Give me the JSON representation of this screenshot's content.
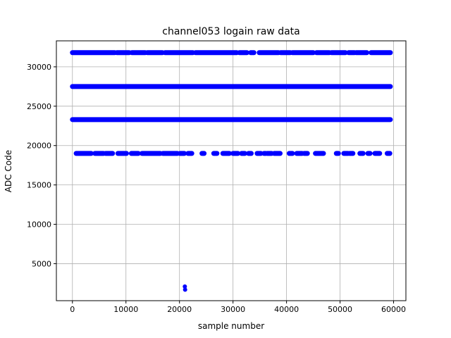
{
  "chart_data": {
    "type": "scatter",
    "title": "channel053 logain raw data",
    "xlabel": "sample number",
    "ylabel": "ADC Code",
    "xlim": [
      -3000,
      62300
    ],
    "ylim": [
      300,
      33300
    ],
    "xticks": [
      0,
      10000,
      20000,
      30000,
      40000,
      50000,
      60000
    ],
    "yticks": [
      5000,
      10000,
      15000,
      20000,
      25000,
      30000
    ],
    "grid": true,
    "marker_color": "#0000ff",
    "levels": [
      {
        "y": 31800,
        "segments": [
          [
            0,
            7900
          ],
          [
            8300,
            10600
          ],
          [
            11100,
            13600
          ],
          [
            14000,
            16800
          ],
          [
            17300,
            22500
          ],
          [
            23000,
            30700
          ],
          [
            31200,
            32600
          ],
          [
            33300,
            33900
          ],
          [
            34900,
            38500
          ],
          [
            38900,
            40700
          ],
          [
            41100,
            45000
          ],
          [
            45600,
            48000
          ],
          [
            48400,
            51000
          ],
          [
            51600,
            52700
          ],
          [
            53000,
            55000
          ],
          [
            55800,
            59400
          ]
        ]
      },
      {
        "y": 27500,
        "segments": [
          [
            0,
            59400
          ]
        ]
      },
      {
        "y": 23300,
        "segments": [
          [
            0,
            59400
          ]
        ]
      },
      {
        "y": 19000,
        "segments": [
          [
            700,
            3500
          ],
          [
            4200,
            5800
          ],
          [
            6200,
            7500
          ],
          [
            8500,
            10100
          ],
          [
            11000,
            12300
          ],
          [
            13000,
            16400
          ],
          [
            16900,
            19600
          ],
          [
            20100,
            20900
          ],
          [
            21600,
            22300
          ],
          [
            24200,
            24600
          ],
          [
            26400,
            27000
          ],
          [
            28100,
            29300
          ],
          [
            30000,
            30900
          ],
          [
            31600,
            32200
          ],
          [
            32900,
            33400
          ],
          [
            34500,
            35200
          ],
          [
            35800,
            36100
          ],
          [
            36400,
            37200
          ],
          [
            37700,
            38800
          ],
          [
            40500,
            41100
          ],
          [
            41900,
            42900
          ],
          [
            43300,
            43900
          ],
          [
            45400,
            46900
          ],
          [
            49300,
            49700
          ],
          [
            50700,
            51500
          ],
          [
            51800,
            52400
          ],
          [
            53700,
            54300
          ],
          [
            55200,
            55600
          ],
          [
            56500,
            57400
          ],
          [
            58800,
            59300
          ]
        ]
      }
    ],
    "outliers": [
      {
        "x": 21000,
        "y": 2100
      },
      {
        "x": 21050,
        "y": 1700
      }
    ]
  }
}
